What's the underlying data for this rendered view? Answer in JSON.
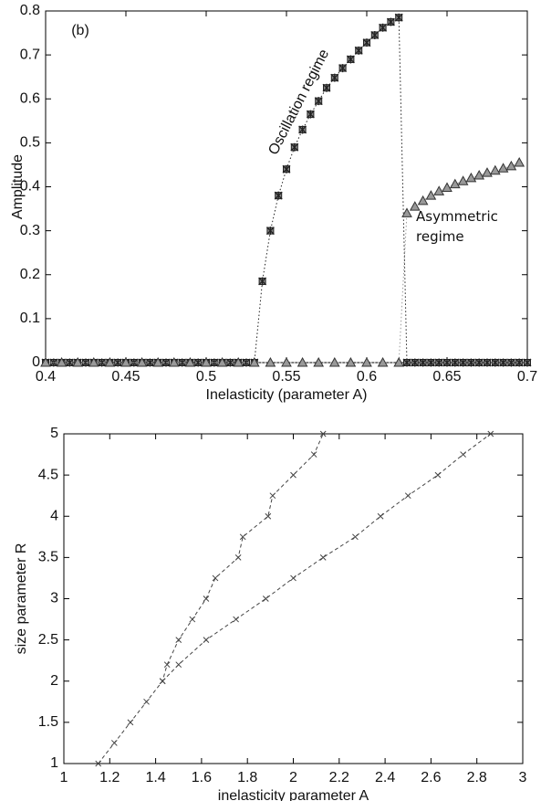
{
  "chart_data": [
    {
      "type": "line",
      "xlabel": "Inelasticity (parameter A)",
      "ylabel": "Amplitude",
      "annotations": [
        "(b)",
        "Oscillation regime",
        "Asymmetric regime"
      ],
      "xlim": [
        0.4,
        0.7
      ],
      "xticks": [
        0.4,
        0.45,
        0.5,
        0.55,
        0.6,
        0.65,
        0.7
      ],
      "ylim": [
        0,
        0.8
      ],
      "yticks": [
        0,
        0.1,
        0.2,
        0.3,
        0.4,
        0.5,
        0.6,
        0.7,
        0.8
      ],
      "grid": false,
      "series": [
        {
          "color": "#222222",
          "marker": "star",
          "line_style": "dotted",
          "x": [
            0.4,
            0.405,
            0.41,
            0.415,
            0.42,
            0.425,
            0.43,
            0.435,
            0.44,
            0.445,
            0.45,
            0.455,
            0.46,
            0.465,
            0.47,
            0.475,
            0.48,
            0.485,
            0.49,
            0.495,
            0.5,
            0.505,
            0.51,
            0.515,
            0.52,
            0.525,
            0.53,
            0.535,
            0.54,
            0.545,
            0.55,
            0.555,
            0.56,
            0.565,
            0.57,
            0.575,
            0.58,
            0.585,
            0.59,
            0.595,
            0.6,
            0.605,
            0.61,
            0.615,
            0.62,
            0.625,
            0.63,
            0.635,
            0.64,
            0.645,
            0.65,
            0.655,
            0.66,
            0.665,
            0.67,
            0.675,
            0.68,
            0.685,
            0.69,
            0.695,
            0.7
          ],
          "values": [
            0,
            0,
            0,
            0,
            0,
            0,
            0,
            0,
            0,
            0,
            0,
            0,
            0,
            0,
            0,
            0,
            0,
            0,
            0,
            0,
            0,
            0,
            0,
            0,
            0,
            0,
            0,
            0.185,
            0.3,
            0.38,
            0.44,
            0.49,
            0.53,
            0.565,
            0.595,
            0.625,
            0.648,
            0.67,
            0.69,
            0.71,
            0.728,
            0.745,
            0.762,
            0.775,
            0.785,
            0,
            0,
            0,
            0,
            0,
            0,
            0,
            0,
            0,
            0,
            0,
            0,
            0,
            0,
            0,
            0
          ]
        },
        {
          "color": "#999999",
          "marker": "triangle",
          "line_style": "dotted",
          "x": [
            0.4,
            0.41,
            0.42,
            0.43,
            0.44,
            0.45,
            0.46,
            0.47,
            0.48,
            0.49,
            0.5,
            0.51,
            0.52,
            0.53,
            0.54,
            0.55,
            0.56,
            0.57,
            0.58,
            0.59,
            0.6,
            0.61,
            0.62,
            0.625,
            0.63,
            0.635,
            0.64,
            0.645,
            0.65,
            0.655,
            0.66,
            0.665,
            0.67,
            0.675,
            0.68,
            0.685,
            0.69,
            0.695
          ],
          "values": [
            0,
            0,
            0,
            0,
            0,
            0,
            0,
            0,
            0,
            0,
            0,
            0,
            0,
            0,
            0,
            0,
            0,
            0,
            0,
            0,
            0,
            0,
            0,
            0.34,
            0.355,
            0.368,
            0.38,
            0.39,
            0.398,
            0.406,
            0.413,
            0.42,
            0.426,
            0.432,
            0.437,
            0.442,
            0.447,
            0.455
          ]
        }
      ]
    },
    {
      "type": "line",
      "xlabel": "inelasticity parameter A",
      "ylabel": "size parameter R",
      "xlim": [
        1,
        3
      ],
      "xticks": [
        1,
        1.2,
        1.4,
        1.6,
        1.8,
        2,
        2.2,
        2.4,
        2.6,
        2.8,
        3
      ],
      "ylim": [
        1,
        5
      ],
      "yticks": [
        1,
        1.5,
        2,
        2.5,
        3,
        3.5,
        4,
        4.5,
        5
      ],
      "grid": false,
      "series": [
        {
          "color": "#444444",
          "marker": "x",
          "line_style": "dashed",
          "x": [
            1.15,
            1.22,
            1.29,
            1.36,
            1.43,
            1.45,
            1.5,
            1.56,
            1.62,
            1.66,
            1.76,
            1.78,
            1.89,
            1.91,
            2.0,
            2.09,
            2.13
          ],
          "values": [
            1,
            1.25,
            1.5,
            1.75,
            2,
            2.2,
            2.5,
            2.75,
            3,
            3.25,
            3.5,
            3.75,
            4,
            4.25,
            4.5,
            4.75,
            5
          ]
        },
        {
          "color": "#444444",
          "marker": "x",
          "line_style": "dashed",
          "x": [
            1.43,
            1.5,
            1.62,
            1.75,
            1.88,
            2.0,
            2.13,
            2.27,
            2.38,
            2.5,
            2.63,
            2.74,
            2.86
          ],
          "values": [
            2,
            2.2,
            2.5,
            2.75,
            3,
            3.25,
            3.5,
            3.75,
            4,
            4.25,
            4.5,
            4.75,
            5
          ]
        }
      ]
    }
  ]
}
